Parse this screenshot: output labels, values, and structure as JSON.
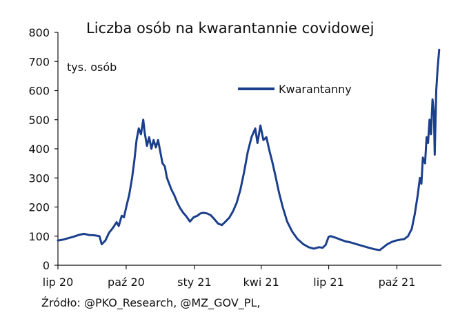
{
  "chart_data": {
    "type": "line",
    "title": "Liczba osób na kwarantannie covidowej",
    "unit_label": "tys. osób",
    "ylim": [
      0,
      800
    ],
    "yticks": [
      0,
      100,
      200,
      300,
      400,
      500,
      600,
      700,
      800
    ],
    "x_range": [
      "2020-07-01",
      "2021-11-30"
    ],
    "xticks": [
      {
        "date": "2020-07-01",
        "label": "lip 20"
      },
      {
        "date": "2020-10-01",
        "label": "paź 20"
      },
      {
        "date": "2021-01-01",
        "label": "sty 21"
      },
      {
        "date": "2021-04-01",
        "label": "kwi 21"
      },
      {
        "date": "2021-07-01",
        "label": "lip 21"
      },
      {
        "date": "2021-10-01",
        "label": "paź 21"
      }
    ],
    "legend_position": "top-right",
    "grid": false,
    "series": [
      {
        "name": "Kwarantanny",
        "color": "#1b3f8b",
        "points": [
          [
            "2020-07-01",
            85
          ],
          [
            "2020-07-08",
            88
          ],
          [
            "2020-07-15",
            93
          ],
          [
            "2020-07-22",
            98
          ],
          [
            "2020-07-29",
            104
          ],
          [
            "2020-08-05",
            108
          ],
          [
            "2020-08-12",
            104
          ],
          [
            "2020-08-19",
            103
          ],
          [
            "2020-08-26",
            100
          ],
          [
            "2020-08-29",
            72
          ],
          [
            "2020-09-03",
            85
          ],
          [
            "2020-09-08",
            112
          ],
          [
            "2020-09-13",
            128
          ],
          [
            "2020-09-18",
            148
          ],
          [
            "2020-09-21",
            135
          ],
          [
            "2020-09-25",
            170
          ],
          [
            "2020-09-28",
            165
          ],
          [
            "2020-10-02",
            210
          ],
          [
            "2020-10-05",
            240
          ],
          [
            "2020-10-09",
            300
          ],
          [
            "2020-10-12",
            360
          ],
          [
            "2020-10-15",
            430
          ],
          [
            "2020-10-18",
            470
          ],
          [
            "2020-10-21",
            450
          ],
          [
            "2020-10-24",
            500
          ],
          [
            "2020-10-26",
            455
          ],
          [
            "2020-10-29",
            410
          ],
          [
            "2020-11-01",
            440
          ],
          [
            "2020-11-04",
            400
          ],
          [
            "2020-11-07",
            430
          ],
          [
            "2020-11-10",
            405
          ],
          [
            "2020-11-13",
            430
          ],
          [
            "2020-11-16",
            390
          ],
          [
            "2020-11-19",
            350
          ],
          [
            "2020-11-22",
            340
          ],
          [
            "2020-11-25",
            300
          ],
          [
            "2020-11-28",
            280
          ],
          [
            "2020-12-01",
            260
          ],
          [
            "2020-12-05",
            240
          ],
          [
            "2020-12-09",
            215
          ],
          [
            "2020-12-13",
            195
          ],
          [
            "2020-12-17",
            180
          ],
          [
            "2020-12-21",
            168
          ],
          [
            "2020-12-26",
            150
          ],
          [
            "2020-12-31",
            165
          ],
          [
            "2021-01-05",
            170
          ],
          [
            "2021-01-09",
            178
          ],
          [
            "2021-01-13",
            180
          ],
          [
            "2021-01-18",
            178
          ],
          [
            "2021-01-23",
            172
          ],
          [
            "2021-01-28",
            158
          ],
          [
            "2021-02-02",
            143
          ],
          [
            "2021-02-07",
            138
          ],
          [
            "2021-02-12",
            150
          ],
          [
            "2021-02-17",
            163
          ],
          [
            "2021-02-22",
            185
          ],
          [
            "2021-02-27",
            215
          ],
          [
            "2021-03-04",
            260
          ],
          [
            "2021-03-09",
            320
          ],
          [
            "2021-03-14",
            390
          ],
          [
            "2021-03-19",
            440
          ],
          [
            "2021-03-24",
            470
          ],
          [
            "2021-03-27",
            420
          ],
          [
            "2021-03-31",
            480
          ],
          [
            "2021-04-04",
            430
          ],
          [
            "2021-04-08",
            440
          ],
          [
            "2021-04-12",
            395
          ],
          [
            "2021-04-16",
            355
          ],
          [
            "2021-04-20",
            310
          ],
          [
            "2021-04-25",
            250
          ],
          [
            "2021-04-30",
            200
          ],
          [
            "2021-05-06",
            150
          ],
          [
            "2021-05-13",
            115
          ],
          [
            "2021-05-20",
            90
          ],
          [
            "2021-05-28",
            72
          ],
          [
            "2021-06-04",
            62
          ],
          [
            "2021-06-11",
            57
          ],
          [
            "2021-06-18",
            62
          ],
          [
            "2021-06-23",
            60
          ],
          [
            "2021-06-27",
            70
          ],
          [
            "2021-07-01",
            98
          ],
          [
            "2021-07-04",
            100
          ],
          [
            "2021-07-10",
            95
          ],
          [
            "2021-07-17",
            88
          ],
          [
            "2021-07-24",
            82
          ],
          [
            "2021-07-31",
            78
          ],
          [
            "2021-08-08",
            72
          ],
          [
            "2021-08-16",
            66
          ],
          [
            "2021-08-24",
            60
          ],
          [
            "2021-09-01",
            55
          ],
          [
            "2021-09-08",
            52
          ],
          [
            "2021-09-12",
            60
          ],
          [
            "2021-09-18",
            72
          ],
          [
            "2021-09-24",
            80
          ],
          [
            "2021-09-30",
            85
          ],
          [
            "2021-10-06",
            88
          ],
          [
            "2021-10-11",
            90
          ],
          [
            "2021-10-16",
            100
          ],
          [
            "2021-10-21",
            125
          ],
          [
            "2021-10-25",
            175
          ],
          [
            "2021-10-29",
            240
          ],
          [
            "2021-11-01",
            300
          ],
          [
            "2021-11-03",
            280
          ],
          [
            "2021-11-05",
            370
          ],
          [
            "2021-11-08",
            350
          ],
          [
            "2021-11-10",
            440
          ],
          [
            "2021-11-12",
            420
          ],
          [
            "2021-11-14",
            500
          ],
          [
            "2021-11-16",
            450
          ],
          [
            "2021-11-18",
            570
          ],
          [
            "2021-11-20",
            520
          ],
          [
            "2021-11-21",
            380
          ],
          [
            "2021-11-23",
            600
          ],
          [
            "2021-11-25",
            680
          ],
          [
            "2021-11-27",
            740
          ]
        ]
      }
    ]
  },
  "source": {
    "text": "Źródło: @PKO_Research, @MZ_GOV_PL,"
  }
}
